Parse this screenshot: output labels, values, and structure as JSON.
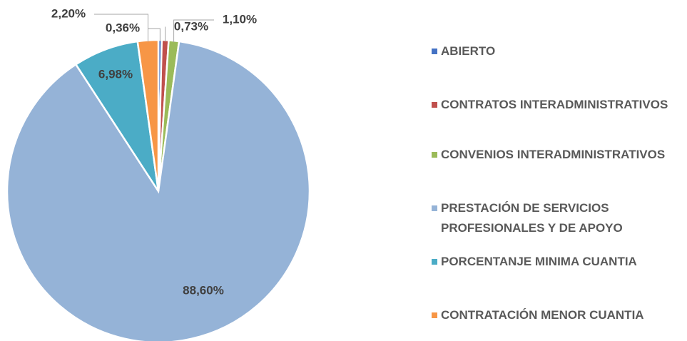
{
  "chart_data": {
    "type": "pie",
    "categories": [
      "ABIERTO",
      "CONTRATOS INTERADMINISTRATIVOS",
      "CONVENIOS INTERADMINISTRATIVOS",
      "PRESTACIÓN DE SERVICIOS PROFESIONALES Y DE APOYO",
      "PORCENTANJE MINIMA CUANTIA",
      "CONTRATACIÓN MENOR CUANTIA"
    ],
    "values": [
      0.36,
      0.73,
      1.1,
      88.6,
      6.98,
      2.2
    ],
    "value_labels": [
      "0,36%",
      "0,73%",
      "1,10%",
      "88,60%",
      "6,98%",
      "2,20%"
    ],
    "colors": [
      "#4472c4",
      "#c0504d",
      "#9bbb59",
      "#95b3d7",
      "#4bacc6",
      "#f79646"
    ],
    "legend": "right"
  }
}
